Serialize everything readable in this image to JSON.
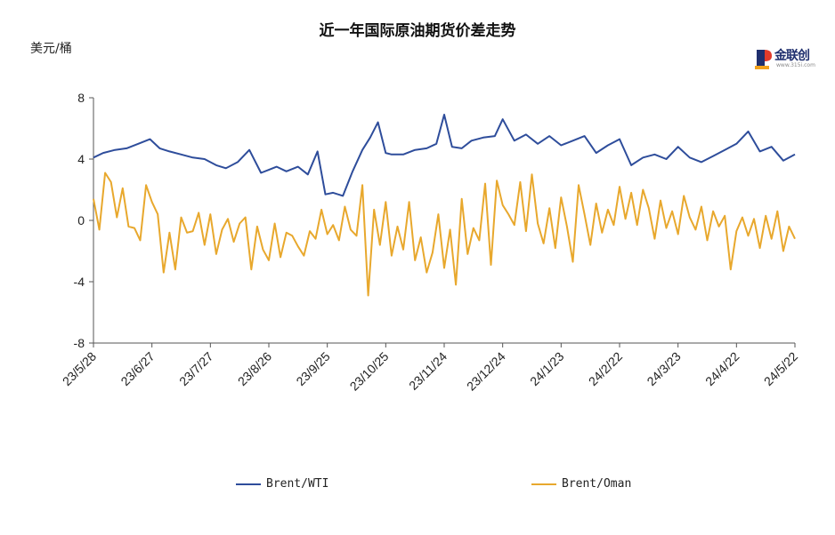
{
  "chart_data": {
    "type": "line",
    "title": "近一年国际原油期货价差走势",
    "ylabel": "美元/桶",
    "ylim": [
      -8,
      8
    ],
    "yticks": [
      -8,
      -4,
      0,
      4,
      8
    ],
    "xlim": [
      "2023-05-28",
      "2024-05-22"
    ],
    "xtick_labels": [
      "23/5/28",
      "23/6/27",
      "23/7/27",
      "23/8/26",
      "23/9/25",
      "23/10/25",
      "23/11/24",
      "23/12/24",
      "24/1/23",
      "24/2/22",
      "24/3/23",
      "24/4/22",
      "24/5/22"
    ],
    "grid": false,
    "legend_position": "bottom",
    "series": [
      {
        "name": "Brent/WTI",
        "color": "#2E4D9B",
        "x": [
          "2023-05-28",
          "2023-06-02",
          "2023-06-08",
          "2023-06-14",
          "2023-06-20",
          "2023-06-26",
          "2023-07-01",
          "2023-07-06",
          "2023-07-12",
          "2023-07-18",
          "2023-07-24",
          "2023-07-30",
          "2023-08-04",
          "2023-08-10",
          "2023-08-16",
          "2023-08-22",
          "2023-08-26",
          "2023-08-30",
          "2023-09-04",
          "2023-09-10",
          "2023-09-15",
          "2023-09-20",
          "2023-09-24",
          "2023-09-28",
          "2023-10-03",
          "2023-10-08",
          "2023-10-13",
          "2023-10-17",
          "2023-10-21",
          "2023-10-25",
          "2023-10-28",
          "2023-11-03",
          "2023-11-09",
          "2023-11-15",
          "2023-11-20",
          "2023-11-24",
          "2023-11-28",
          "2023-12-03",
          "2023-12-08",
          "2023-12-14",
          "2023-12-20",
          "2023-12-24",
          "2023-12-30",
          "2024-01-05",
          "2024-01-11",
          "2024-01-17",
          "2024-01-23",
          "2024-01-29",
          "2024-02-04",
          "2024-02-10",
          "2024-02-16",
          "2024-02-22",
          "2024-02-28",
          "2024-03-05",
          "2024-03-11",
          "2024-03-17",
          "2024-03-23",
          "2024-03-29",
          "2024-04-04",
          "2024-04-10",
          "2024-04-16",
          "2024-04-22",
          "2024-04-28",
          "2024-05-04",
          "2024-05-10",
          "2024-05-16",
          "2024-05-22"
        ],
        "values": [
          4.1,
          4.4,
          4.6,
          4.7,
          5.0,
          5.3,
          4.7,
          4.5,
          4.3,
          4.1,
          4.0,
          3.6,
          3.4,
          3.8,
          4.6,
          3.1,
          3.3,
          3.5,
          3.2,
          3.5,
          3.0,
          4.5,
          1.7,
          1.8,
          1.6,
          3.2,
          4.6,
          5.4,
          6.4,
          4.4,
          4.3,
          4.3,
          4.6,
          4.7,
          5.0,
          6.9,
          4.8,
          4.7,
          5.2,
          5.4,
          5.5,
          6.6,
          5.2,
          5.6,
          5.0,
          5.5,
          4.9,
          5.2,
          5.5,
          4.4,
          4.9,
          5.3,
          3.6,
          4.1,
          4.3,
          4.0,
          4.8,
          4.1,
          3.8,
          4.2,
          4.6,
          5.0,
          5.8,
          4.5,
          4.8,
          3.9,
          4.3
        ]
      },
      {
        "name": "Brent/Oman",
        "color": "#E8A82D",
        "x": [
          "2023-05-28",
          "2023-05-31",
          "2023-06-03",
          "2023-06-06",
          "2023-06-09",
          "2023-06-12",
          "2023-06-15",
          "2023-06-18",
          "2023-06-21",
          "2023-06-24",
          "2023-06-27",
          "2023-06-30",
          "2023-07-03",
          "2023-07-06",
          "2023-07-09",
          "2023-07-12",
          "2023-07-15",
          "2023-07-18",
          "2023-07-21",
          "2023-07-24",
          "2023-07-27",
          "2023-07-30",
          "2023-08-02",
          "2023-08-05",
          "2023-08-08",
          "2023-08-11",
          "2023-08-14",
          "2023-08-17",
          "2023-08-20",
          "2023-08-23",
          "2023-08-26",
          "2023-08-29",
          "2023-09-01",
          "2023-09-04",
          "2023-09-07",
          "2023-09-10",
          "2023-09-13",
          "2023-09-16",
          "2023-09-19",
          "2023-09-22",
          "2023-09-25",
          "2023-09-28",
          "2023-10-01",
          "2023-10-04",
          "2023-10-07",
          "2023-10-10",
          "2023-10-13",
          "2023-10-16",
          "2023-10-19",
          "2023-10-22",
          "2023-10-25",
          "2023-10-28",
          "2023-10-31",
          "2023-11-03",
          "2023-11-06",
          "2023-11-09",
          "2023-11-12",
          "2023-11-15",
          "2023-11-18",
          "2023-11-21",
          "2023-11-24",
          "2023-11-27",
          "2023-11-30",
          "2023-12-03",
          "2023-12-06",
          "2023-12-09",
          "2023-12-12",
          "2023-12-15",
          "2023-12-18",
          "2023-12-21",
          "2023-12-24",
          "2023-12-27",
          "2023-12-30",
          "2024-01-02",
          "2024-01-05",
          "2024-01-08",
          "2024-01-11",
          "2024-01-14",
          "2024-01-17",
          "2024-01-20",
          "2024-01-23",
          "2024-01-26",
          "2024-01-29",
          "2024-02-01",
          "2024-02-04",
          "2024-02-07",
          "2024-02-10",
          "2024-02-13",
          "2024-02-16",
          "2024-02-19",
          "2024-02-22",
          "2024-02-25",
          "2024-02-28",
          "2024-03-02",
          "2024-03-05",
          "2024-03-08",
          "2024-03-11",
          "2024-03-14",
          "2024-03-17",
          "2024-03-20",
          "2024-03-23",
          "2024-03-26",
          "2024-03-29",
          "2024-04-01",
          "2024-04-04",
          "2024-04-07",
          "2024-04-10",
          "2024-04-13",
          "2024-04-16",
          "2024-04-19",
          "2024-04-22",
          "2024-04-25",
          "2024-04-28",
          "2024-05-01",
          "2024-05-04",
          "2024-05-07",
          "2024-05-10",
          "2024-05-13",
          "2024-05-16",
          "2024-05-19",
          "2024-05-22"
        ],
        "values": [
          1.4,
          -0.6,
          3.1,
          2.5,
          0.2,
          2.1,
          -0.4,
          -0.5,
          -1.3,
          2.3,
          1.2,
          0.4,
          -3.4,
          -0.8,
          -3.2,
          0.2,
          -0.8,
          -0.7,
          0.5,
          -1.6,
          0.4,
          -2.2,
          -0.6,
          0.1,
          -1.4,
          -0.2,
          0.2,
          -3.2,
          -0.4,
          -1.9,
          -2.6,
          -0.2,
          -2.4,
          -0.8,
          -1.0,
          -1.7,
          -2.3,
          -0.7,
          -1.2,
          0.7,
          -0.9,
          -0.3,
          -1.3,
          0.9,
          -0.6,
          -1.0,
          2.3,
          -4.9,
          0.7,
          -1.6,
          1.2,
          -2.3,
          -0.4,
          -1.9,
          1.2,
          -2.6,
          -1.1,
          -3.4,
          -2.1,
          0.4,
          -3.1,
          -0.6,
          -4.2,
          1.4,
          -2.2,
          -0.5,
          -1.3,
          2.4,
          -2.9,
          2.6,
          1.0,
          0.4,
          -0.3,
          2.5,
          -0.7,
          3.0,
          -0.2,
          -1.5,
          0.8,
          -1.8,
          1.5,
          -0.4,
          -2.7,
          2.3,
          0.4,
          -1.6,
          1.1,
          -0.8,
          0.7,
          -0.3,
          2.2,
          0.1,
          1.8,
          -0.3,
          2.0,
          0.8,
          -1.2,
          1.3,
          -0.5,
          0.6,
          -0.9,
          1.6,
          0.2,
          -0.6,
          0.9,
          -1.3,
          0.6,
          -0.4,
          0.3,
          -3.2,
          -0.7,
          0.2,
          -1.0,
          0.1,
          -1.8,
          0.3,
          -1.2,
          0.6,
          -2.0,
          -0.4,
          -1.2
        ]
      }
    ]
  },
  "logo": {
    "text": "金联创",
    "subtext": "www.315i.com"
  }
}
